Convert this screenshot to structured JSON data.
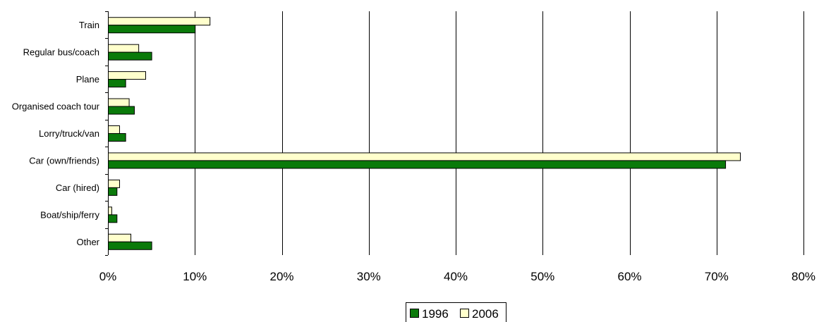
{
  "chart_data": {
    "type": "bar",
    "orientation": "horizontal",
    "categories": [
      "Train",
      "Regular bus/coach",
      "Plane",
      "Organised coach tour",
      "Lorry/truck/van",
      "Car (own/friends)",
      "Car (hired)",
      "Boat/ship/ferry",
      "Other"
    ],
    "series": [
      {
        "name": "1996",
        "color": "#0a7a0a",
        "values": [
          10,
          5,
          2,
          3,
          2,
          71,
          1,
          1,
          5
        ]
      },
      {
        "name": "2006",
        "color": "#ffffcc",
        "values": [
          11.7,
          3.5,
          4.3,
          2.4,
          1.3,
          72.7,
          1.3,
          0.4,
          2.6
        ]
      }
    ],
    "xlim": [
      0,
      80
    ],
    "ticks": [
      0,
      10,
      20,
      30,
      40,
      50,
      60,
      70,
      80
    ],
    "tick_labels": [
      "0%",
      "10%",
      "20%",
      "30%",
      "40%",
      "50%",
      "60%",
      "70%",
      "80%"
    ],
    "grid": "vertical",
    "legend_position": "bottom",
    "title": "",
    "xlabel": "",
    "ylabel": ""
  }
}
